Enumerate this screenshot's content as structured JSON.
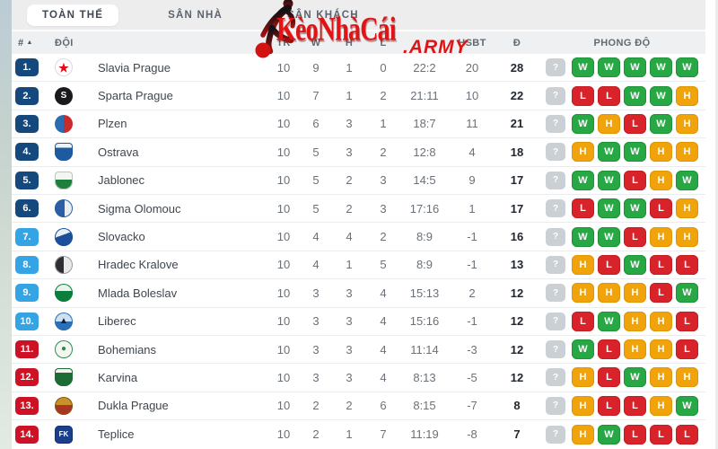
{
  "watermark": {
    "title": "KèoNhàCái",
    "suffix": ".ARMY",
    "color": "#e01414"
  },
  "tabs": [
    {
      "label": "TOÀN THỂ",
      "active": true
    },
    {
      "label": "SÂN NHÀ",
      "active": false
    },
    {
      "label": "SÂN KHÁCH",
      "active": false
    }
  ],
  "table": {
    "headers": {
      "rank": "#",
      "team": "ĐỘI",
      "played": "TR",
      "won": "W",
      "drawn": "H",
      "lost": "L",
      "goals": "",
      "diff": "HSBT",
      "points": "Đ",
      "form": "PHONG ĐỘ"
    },
    "rank_colors": {
      "top": "#15497e",
      "mid": "#35a4e4",
      "bottom": "#cd1225"
    },
    "form_colors": {
      "W": "#27a844",
      "H": "#f0a30a",
      "L": "#d8232a",
      "?": "#cbd0d4"
    },
    "rows": [
      {
        "rank": "1.",
        "tier": "top",
        "team": "Slavia Prague",
        "tr": 10,
        "w": 9,
        "h": 1,
        "l": 0,
        "score": "22:2",
        "hsbt": 20,
        "d": 28,
        "form": [
          "?",
          "W",
          "W",
          "W",
          "W",
          "W"
        ],
        "logo": {
          "shape": "circle",
          "bg": "#ffffff",
          "border": "#d8dadd",
          "glyph": "★",
          "glyph_color": "#e30613"
        }
      },
      {
        "rank": "2.",
        "tier": "top",
        "team": "Sparta Prague",
        "tr": 10,
        "w": 7,
        "h": 1,
        "l": 2,
        "score": "21:11",
        "hsbt": 10,
        "d": 22,
        "form": [
          "?",
          "L",
          "L",
          "W",
          "W",
          "H"
        ],
        "logo": {
          "shape": "circle",
          "bg": "#1a1a1c",
          "glyph": "S",
          "glyph_color": "#ffffff"
        }
      },
      {
        "rank": "3.",
        "tier": "top",
        "team": "Plzen",
        "tr": 10,
        "w": 6,
        "h": 3,
        "l": 1,
        "score": "18:7",
        "hsbt": 11,
        "d": 21,
        "form": [
          "?",
          "W",
          "H",
          "L",
          "W",
          "H"
        ],
        "logo": {
          "shape": "circle",
          "bg": "linear-gradient(90deg,#2b6cb0 50%,#cc2a2a 50%)",
          "glyph": "",
          "glyph_color": "#ffffff"
        }
      },
      {
        "rank": "4.",
        "tier": "top",
        "team": "Ostrava",
        "tr": 10,
        "w": 5,
        "h": 3,
        "l": 2,
        "score": "12:8",
        "hsbt": 4,
        "d": 18,
        "form": [
          "?",
          "H",
          "W",
          "W",
          "H",
          "H"
        ],
        "logo": {
          "shape": "shield",
          "bg": "linear-gradient(180deg,#eef2f6 28%,#1e5aa0 28%)",
          "border": "#1e5aa0",
          "glyph": "",
          "glyph_color": "#d03030"
        }
      },
      {
        "rank": "5.",
        "tier": "top",
        "team": "Jablonec",
        "tr": 10,
        "w": 5,
        "h": 2,
        "l": 3,
        "score": "14:5",
        "hsbt": 9,
        "d": 17,
        "form": [
          "?",
          "W",
          "W",
          "L",
          "H",
          "W"
        ],
        "logo": {
          "shape": "shield",
          "bg": "linear-gradient(180deg,#f2f5f2 45%,#1e7f3c 45%)",
          "border": "#bcc4bd",
          "glyph": "",
          "glyph_color": "#1e7f3c"
        }
      },
      {
        "rank": "6.",
        "tier": "top",
        "team": "Sigma Olomouc",
        "tr": 10,
        "w": 5,
        "h": 2,
        "l": 3,
        "score": "17:16",
        "hsbt": 1,
        "d": 17,
        "form": [
          "?",
          "L",
          "W",
          "W",
          "L",
          "H"
        ],
        "logo": {
          "shape": "circle",
          "bg": "linear-gradient(90deg,#2a5fa5 55%,#e8edf4 55%)",
          "border": "#2a5fa5",
          "glyph": "",
          "glyph_color": "#ffffff"
        }
      },
      {
        "rank": "7.",
        "tier": "mid",
        "team": "Slovacko",
        "tr": 10,
        "w": 4,
        "h": 4,
        "l": 2,
        "score": "8:9",
        "hsbt": -1,
        "d": 16,
        "form": [
          "?",
          "W",
          "W",
          "L",
          "H",
          "H"
        ],
        "logo": {
          "shape": "circle",
          "bg": "linear-gradient(160deg,#e9eff6 40%,#1b4f9c 40%)",
          "border": "#1b4f9c",
          "glyph": "",
          "glyph_color": "#ffffff"
        }
      },
      {
        "rank": "8.",
        "tier": "mid",
        "team": "Hradec Kralove",
        "tr": 10,
        "w": 4,
        "h": 1,
        "l": 5,
        "score": "8:9",
        "hsbt": -1,
        "d": 13,
        "form": [
          "?",
          "H",
          "L",
          "W",
          "L",
          "L"
        ],
        "logo": {
          "shape": "circle",
          "bg": "linear-gradient(90deg,#2e2e33 50%,#e9e9ea 50%)",
          "border": "#9a9aa0",
          "glyph": "",
          "glyph_color": "#ffffff"
        }
      },
      {
        "rank": "9.",
        "tier": "mid",
        "team": "Mlada Boleslav",
        "tr": 10,
        "w": 3,
        "h": 3,
        "l": 4,
        "score": "15:13",
        "hsbt": 2,
        "d": 12,
        "form": [
          "?",
          "H",
          "H",
          "H",
          "L",
          "W"
        ],
        "logo": {
          "shape": "circle",
          "bg": "linear-gradient(180deg,#eaf2ec 40%,#0a7e3c 40%)",
          "border": "#0a7e3c",
          "glyph": "",
          "glyph_color": "#ffffff"
        }
      },
      {
        "rank": "10.",
        "tier": "mid",
        "team": "Liberec",
        "tr": 10,
        "w": 3,
        "h": 3,
        "l": 4,
        "score": "15:16",
        "hsbt": -1,
        "d": 12,
        "form": [
          "?",
          "L",
          "W",
          "H",
          "H",
          "L"
        ],
        "logo": {
          "shape": "circle",
          "bg": "linear-gradient(180deg,#cfe0f0 50%,#2b6fb8 50%)",
          "border": "#2b6fb8",
          "glyph": "▲",
          "glyph_color": "#14203a"
        }
      },
      {
        "rank": "11.",
        "tier": "bottom",
        "team": "Bohemians",
        "tr": 10,
        "w": 3,
        "h": 3,
        "l": 4,
        "score": "11:14",
        "hsbt": -3,
        "d": 12,
        "form": [
          "?",
          "W",
          "L",
          "H",
          "H",
          "L"
        ],
        "logo": {
          "shape": "circle",
          "bg": "#f2f7f2",
          "border": "#2f8a4f",
          "glyph": "●",
          "glyph_color": "#2f8a4f"
        }
      },
      {
        "rank": "12.",
        "tier": "bottom",
        "team": "Karvina",
        "tr": 10,
        "w": 3,
        "h": 3,
        "l": 4,
        "score": "8:13",
        "hsbt": -5,
        "d": 12,
        "form": [
          "?",
          "H",
          "L",
          "W",
          "H",
          "H"
        ],
        "logo": {
          "shape": "shield",
          "bg": "linear-gradient(180deg,#f0f3ef 25%,#1d6b35 25%)",
          "border": "#1d6b35",
          "glyph": "",
          "glyph_color": "#ffffff"
        }
      },
      {
        "rank": "13.",
        "tier": "bottom",
        "team": "Dukla Prague",
        "tr": 10,
        "w": 2,
        "h": 2,
        "l": 6,
        "score": "8:15",
        "hsbt": -7,
        "d": 8,
        "form": [
          "?",
          "H",
          "L",
          "L",
          "H",
          "W"
        ],
        "logo": {
          "shape": "circle",
          "bg": "linear-gradient(180deg,#c8912a 45%,#aa3322 45%)",
          "border": "#8a5a14",
          "glyph": "",
          "glyph_color": "#ffffff"
        }
      },
      {
        "rank": "14.",
        "tier": "bottom",
        "team": "Teplice",
        "tr": 10,
        "w": 2,
        "h": 1,
        "l": 7,
        "score": "11:19",
        "hsbt": -8,
        "d": 7,
        "form": [
          "?",
          "H",
          "W",
          "L",
          "L",
          "L"
        ],
        "logo": {
          "shape": "square",
          "bg": "#1a3f8f",
          "border": "#12306e",
          "glyph": "FK",
          "glyph_color": "#ffffff"
        }
      }
    ]
  }
}
